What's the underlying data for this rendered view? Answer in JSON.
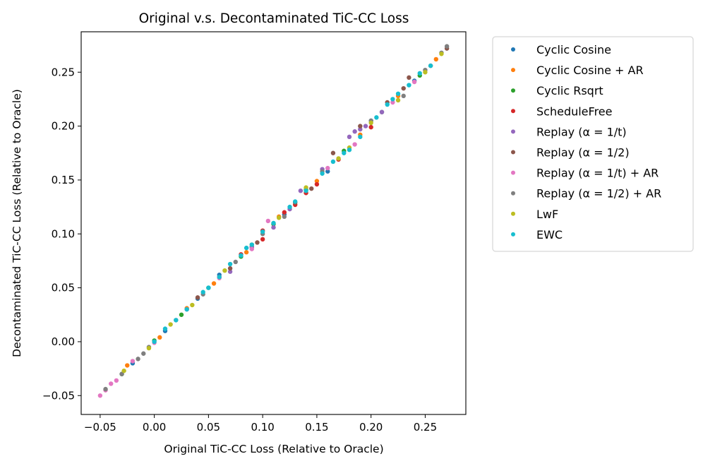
{
  "chart_data": {
    "type": "scatter",
    "title": "Original v.s. Decontaminated TiC-CC Loss",
    "xlabel": "Original TiC-CC Loss (Relative to Oracle)",
    "ylabel": "Decontaminated TiC-CC Loss (Relative to Oracle)",
    "xlim": [
      -0.0675,
      0.2875
    ],
    "ylim": [
      -0.0675,
      0.2875
    ],
    "x_ticks": [
      -0.05,
      0.0,
      0.05,
      0.1,
      0.15,
      0.2,
      0.25
    ],
    "x_tick_labels": [
      "−0.05",
      "0.00",
      "0.05",
      "0.10",
      "0.15",
      "0.20",
      "0.25"
    ],
    "y_ticks": [
      -0.05,
      0.0,
      0.05,
      0.1,
      0.15,
      0.2,
      0.25
    ],
    "y_tick_labels": [
      "−0.05",
      "0.00",
      "0.05",
      "0.10",
      "0.15",
      "0.20",
      "0.25"
    ],
    "grid": false,
    "legend_position": "outside-right",
    "series": [
      {
        "name": "Cyclic Cosine",
        "color": "#1f77b4",
        "points": [
          [
            -0.02,
            -0.02
          ],
          [
            0.01,
            0.01
          ],
          [
            0.04,
            0.04
          ],
          [
            0.06,
            0.062
          ],
          [
            0.09,
            0.088
          ],
          [
            0.12,
            0.118
          ],
          [
            0.16,
            0.158
          ],
          [
            0.2,
            0.205
          ],
          [
            0.24,
            0.242
          ]
        ]
      },
      {
        "name": "Cyclic Cosine + AR",
        "color": "#ff7f0e",
        "points": [
          [
            -0.025,
            -0.022
          ],
          [
            0.005,
            0.004
          ],
          [
            0.03,
            0.031
          ],
          [
            0.055,
            0.054
          ],
          [
            0.085,
            0.083
          ],
          [
            0.115,
            0.116
          ],
          [
            0.15,
            0.149
          ],
          [
            0.19,
            0.192
          ],
          [
            0.225,
            0.228
          ],
          [
            0.26,
            0.262
          ]
        ]
      },
      {
        "name": "Cyclic Rsqrt",
        "color": "#2ca02c",
        "points": [
          [
            -0.03,
            -0.03
          ],
          [
            0.0,
            0.001
          ],
          [
            0.025,
            0.025
          ],
          [
            0.05,
            0.05
          ],
          [
            0.08,
            0.079
          ],
          [
            0.11,
            0.109
          ],
          [
            0.14,
            0.141
          ],
          [
            0.175,
            0.177
          ],
          [
            0.21,
            0.213
          ],
          [
            0.245,
            0.247
          ]
        ]
      },
      {
        "name": "ScheduleFree",
        "color": "#d62728",
        "points": [
          [
            0.06,
            0.06
          ],
          [
            0.08,
            0.081
          ],
          [
            0.1,
            0.103
          ],
          [
            0.1,
            0.095
          ],
          [
            0.12,
            0.12
          ],
          [
            0.13,
            0.127
          ],
          [
            0.14,
            0.138
          ],
          [
            0.17,
            0.169
          ],
          [
            0.2,
            0.199
          ],
          [
            0.15,
            0.146
          ]
        ]
      },
      {
        "name": "Replay (α = 1/t)",
        "color": "#9467bd",
        "points": [
          [
            0.07,
            0.065
          ],
          [
            0.09,
            0.088
          ],
          [
            0.11,
            0.106
          ],
          [
            0.125,
            0.123
          ],
          [
            0.135,
            0.14
          ],
          [
            0.155,
            0.16
          ],
          [
            0.18,
            0.19
          ],
          [
            0.185,
            0.195
          ],
          [
            0.19,
            0.197
          ],
          [
            0.195,
            0.2
          ],
          [
            0.21,
            0.213
          ]
        ]
      },
      {
        "name": "Replay (α = 1/2)",
        "color": "#8c564b",
        "points": [
          [
            0.04,
            0.041
          ],
          [
            0.07,
            0.068
          ],
          [
            0.095,
            0.092
          ],
          [
            0.13,
            0.129
          ],
          [
            0.145,
            0.142
          ],
          [
            0.165,
            0.175
          ],
          [
            0.19,
            0.2
          ],
          [
            0.215,
            0.222
          ],
          [
            0.23,
            0.235
          ],
          [
            0.235,
            0.245
          ],
          [
            0.255,
            0.256
          ],
          [
            0.27,
            0.272
          ]
        ]
      },
      {
        "name": "Replay (α = 1/t) + AR",
        "color": "#e377c2",
        "points": [
          [
            -0.05,
            -0.05
          ],
          [
            -0.045,
            -0.045
          ],
          [
            -0.04,
            -0.039
          ],
          [
            -0.035,
            -0.036
          ],
          [
            -0.02,
            -0.018
          ],
          [
            0.0,
            -0.001
          ],
          [
            0.03,
            0.03
          ],
          [
            0.06,
            0.059
          ],
          [
            0.09,
            0.086
          ],
          [
            0.105,
            0.112
          ],
          [
            0.16,
            0.161
          ],
          [
            0.185,
            0.183
          ],
          [
            0.22,
            0.222
          ],
          [
            0.24,
            0.241
          ]
        ]
      },
      {
        "name": "Replay (α = 1/2) + AR",
        "color": "#7f7f7f",
        "points": [
          [
            -0.045,
            -0.044
          ],
          [
            -0.03,
            -0.03
          ],
          [
            -0.015,
            -0.016
          ],
          [
            -0.01,
            -0.011
          ],
          [
            -0.005,
            -0.005
          ],
          [
            0.02,
            0.02
          ],
          [
            0.045,
            0.044
          ],
          [
            0.075,
            0.074
          ],
          [
            0.1,
            0.1
          ],
          [
            0.12,
            0.116
          ],
          [
            0.155,
            0.158
          ],
          [
            0.2,
            0.205
          ],
          [
            0.23,
            0.228
          ],
          [
            0.25,
            0.252
          ],
          [
            0.265,
            0.268
          ],
          [
            0.27,
            0.274
          ]
        ]
      },
      {
        "name": "LwF",
        "color": "#bcbd22",
        "points": [
          [
            -0.028,
            -0.027
          ],
          [
            -0.005,
            -0.006
          ],
          [
            0.015,
            0.016
          ],
          [
            0.035,
            0.034
          ],
          [
            0.065,
            0.066
          ],
          [
            0.09,
            0.09
          ],
          [
            0.115,
            0.115
          ],
          [
            0.14,
            0.143
          ],
          [
            0.17,
            0.17
          ],
          [
            0.18,
            0.18
          ],
          [
            0.2,
            0.203
          ],
          [
            0.225,
            0.224
          ],
          [
            0.25,
            0.25
          ],
          [
            0.265,
            0.267
          ]
        ]
      },
      {
        "name": "EWC",
        "color": "#17becf",
        "points": [
          [
            0.0,
            0.0
          ],
          [
            0.01,
            0.012
          ],
          [
            0.02,
            0.02
          ],
          [
            0.03,
            0.03
          ],
          [
            0.045,
            0.046
          ],
          [
            0.05,
            0.05
          ],
          [
            0.06,
            0.06
          ],
          [
            0.07,
            0.072
          ],
          [
            0.08,
            0.08
          ],
          [
            0.085,
            0.087
          ],
          [
            0.09,
            0.09
          ],
          [
            0.1,
            0.102
          ],
          [
            0.11,
            0.11
          ],
          [
            0.125,
            0.125
          ],
          [
            0.13,
            0.13
          ],
          [
            0.14,
            0.14
          ],
          [
            0.155,
            0.156
          ],
          [
            0.165,
            0.167
          ],
          [
            0.175,
            0.175
          ],
          [
            0.18,
            0.178
          ],
          [
            0.19,
            0.19
          ],
          [
            0.205,
            0.208
          ],
          [
            0.215,
            0.22
          ],
          [
            0.22,
            0.225
          ],
          [
            0.225,
            0.23
          ],
          [
            0.235,
            0.238
          ],
          [
            0.245,
            0.249
          ],
          [
            0.255,
            0.256
          ]
        ]
      }
    ]
  }
}
